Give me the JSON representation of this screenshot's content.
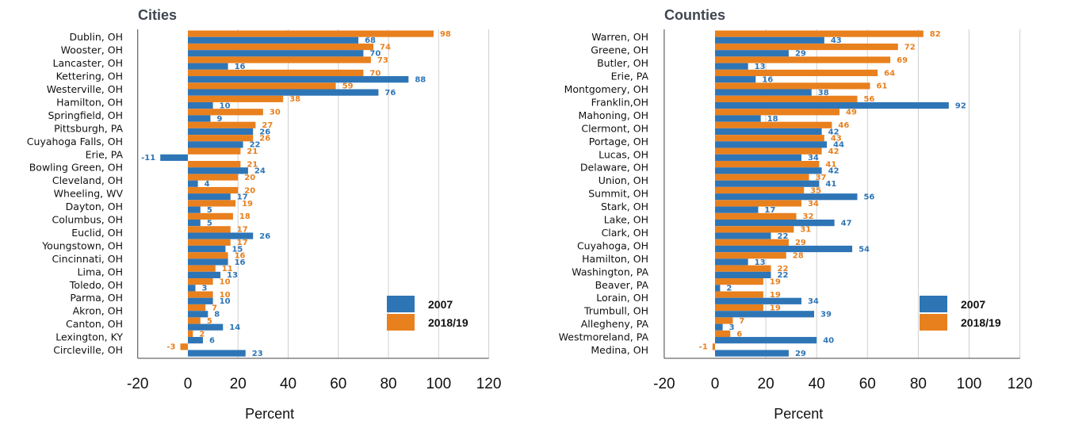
{
  "colors": {
    "2007": "#2e75b6",
    "2018/19": "#e8801e",
    "grid": "#d0d0d0",
    "axis": "#444444"
  },
  "chart_data": [
    {
      "type": "bar",
      "orientation": "horizontal",
      "title": "Cities",
      "xlabel": "Percent",
      "xlim": [
        -20,
        120
      ],
      "xticks": [
        -20,
        0,
        20,
        40,
        60,
        80,
        100,
        120
      ],
      "legend_position": "bottom-right",
      "categories": [
        "Dublin, OH",
        "Wooster, OH",
        "Lancaster, OH",
        "Kettering, OH",
        "Westerville, OH",
        "Hamilton, OH",
        "Springfield, OH",
        "Pittsburgh, PA",
        "Cuyahoga Falls, OH",
        "Erie, PA",
        "Bowling Green, OH",
        "Cleveland, OH",
        "Wheeling, WV",
        "Dayton, OH",
        "Columbus, OH",
        "Euclid, OH",
        "Youngstown, OH",
        "Cincinnati, OH",
        "Lima, OH",
        "Toledo, OH",
        "Parma, OH",
        "Akron, OH",
        "Canton, OH",
        "Lexington, KY",
        "Circleville, OH"
      ],
      "series": [
        {
          "name": "2018/19",
          "values": [
            98,
            74,
            73,
            70,
            59,
            38,
            30,
            27,
            26,
            21,
            21,
            20,
            20,
            19,
            18,
            17,
            17,
            16,
            11,
            10,
            10,
            7,
            5,
            2,
            -3
          ]
        },
        {
          "name": "2007",
          "values": [
            68,
            70,
            16,
            88,
            76,
            10,
            9,
            26,
            22,
            -11,
            24,
            4,
            17,
            5,
            5,
            26,
            15,
            16,
            13,
            3,
            10,
            8,
            14,
            6,
            23
          ]
        }
      ]
    },
    {
      "type": "bar",
      "orientation": "horizontal",
      "title": "Counties",
      "xlabel": "Percent",
      "xlim": [
        -20,
        120
      ],
      "xticks": [
        -20,
        0,
        20,
        40,
        60,
        80,
        100,
        120
      ],
      "legend_position": "bottom-right",
      "categories": [
        "Warren, OH",
        "Greene, OH",
        "Butler, OH",
        "Erie, PA",
        "Montgomery, OH",
        "Franklin,OH",
        "Mahoning, OH",
        "Clermont, OH",
        "Portage, OH",
        "Lucas, OH",
        "Delaware, OH",
        "Union, OH",
        "Summit, OH",
        "Stark, OH",
        "Lake, OH",
        "Clark, OH",
        "Cuyahoga, OH",
        "Hamilton, OH",
        "Washington, PA",
        "Beaver, PA",
        "Lorain, OH",
        "Trumbull, OH",
        "Allegheny, PA",
        "Westmoreland, PA",
        "Medina, OH"
      ],
      "series": [
        {
          "name": "2018/19",
          "values": [
            82,
            72,
            69,
            64,
            61,
            56,
            49,
            46,
            43,
            42,
            41,
            37,
            35,
            34,
            32,
            31,
            29,
            28,
            22,
            19,
            19,
            19,
            7,
            6,
            -1
          ]
        },
        {
          "name": "2007",
          "values": [
            43,
            29,
            13,
            16,
            38,
            92,
            18,
            42,
            44,
            34,
            42,
            41,
            56,
            17,
            47,
            22,
            54,
            13,
            22,
            2,
            34,
            39,
            3,
            40,
            29
          ]
        }
      ]
    }
  ]
}
